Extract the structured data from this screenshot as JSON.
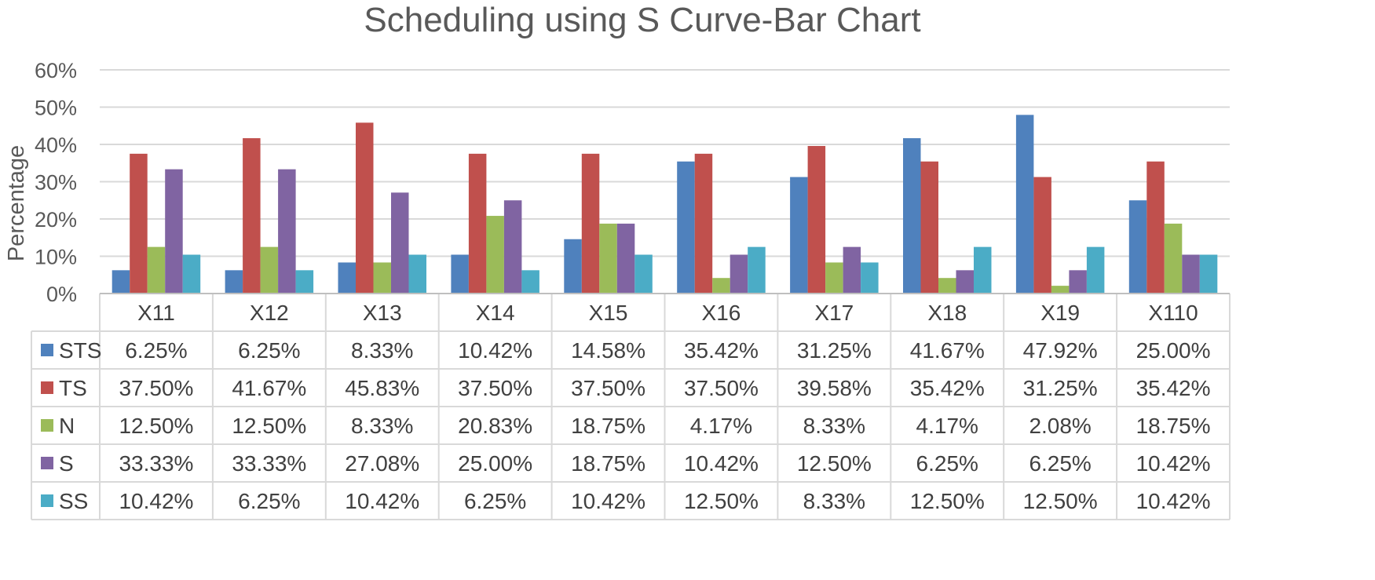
{
  "chart_data": {
    "type": "bar",
    "title": "Scheduling using S Curve-Bar Chart",
    "xlabel": "",
    "ylabel": "Percentage",
    "ylim": [
      0,
      60
    ],
    "y_ticks": [
      "0%",
      "10%",
      "20%",
      "30%",
      "40%",
      "50%",
      "60%"
    ],
    "grid": true,
    "legend": "data-table",
    "categories": [
      "X11",
      "X12",
      "X13",
      "X14",
      "X15",
      "X16",
      "X17",
      "X18",
      "X19",
      "X110"
    ],
    "series": [
      {
        "name": "STS",
        "color": "#4F81BD",
        "values": [
          6.25,
          6.25,
          8.33,
          10.42,
          14.58,
          35.42,
          31.25,
          41.67,
          47.92,
          25.0
        ],
        "labels": [
          "6.25%",
          "6.25%",
          "8.33%",
          "10.42%",
          "14.58%",
          "35.42%",
          "31.25%",
          "41.67%",
          "47.92%",
          "25.00%"
        ]
      },
      {
        "name": "TS",
        "color": "#C0504D",
        "values": [
          37.5,
          41.67,
          45.83,
          37.5,
          37.5,
          37.5,
          39.58,
          35.42,
          31.25,
          35.42
        ],
        "labels": [
          "37.50%",
          "41.67%",
          "45.83%",
          "37.50%",
          "37.50%",
          "37.50%",
          "39.58%",
          "35.42%",
          "31.25%",
          "35.42%"
        ]
      },
      {
        "name": "N",
        "color": "#9BBB59",
        "values": [
          12.5,
          12.5,
          8.33,
          20.83,
          18.75,
          4.17,
          8.33,
          4.17,
          2.08,
          18.75
        ],
        "labels": [
          "12.50%",
          "12.50%",
          "8.33%",
          "20.83%",
          "18.75%",
          "4.17%",
          "8.33%",
          "4.17%",
          "2.08%",
          "18.75%"
        ]
      },
      {
        "name": "S",
        "color": "#8064A2",
        "values": [
          33.33,
          33.33,
          27.08,
          25.0,
          18.75,
          10.42,
          12.5,
          6.25,
          6.25,
          10.42
        ],
        "labels": [
          "33.33%",
          "33.33%",
          "27.08%",
          "25.00%",
          "18.75%",
          "10.42%",
          "12.50%",
          "6.25%",
          "6.25%",
          "10.42%"
        ]
      },
      {
        "name": "SS",
        "color": "#4BACC6",
        "values": [
          10.42,
          6.25,
          10.42,
          6.25,
          10.42,
          12.5,
          8.33,
          12.5,
          12.5,
          10.42
        ],
        "labels": [
          "10.42%",
          "6.25%",
          "10.42%",
          "6.25%",
          "10.42%",
          "12.50%",
          "8.33%",
          "12.50%",
          "12.50%",
          "10.42%"
        ]
      }
    ]
  }
}
